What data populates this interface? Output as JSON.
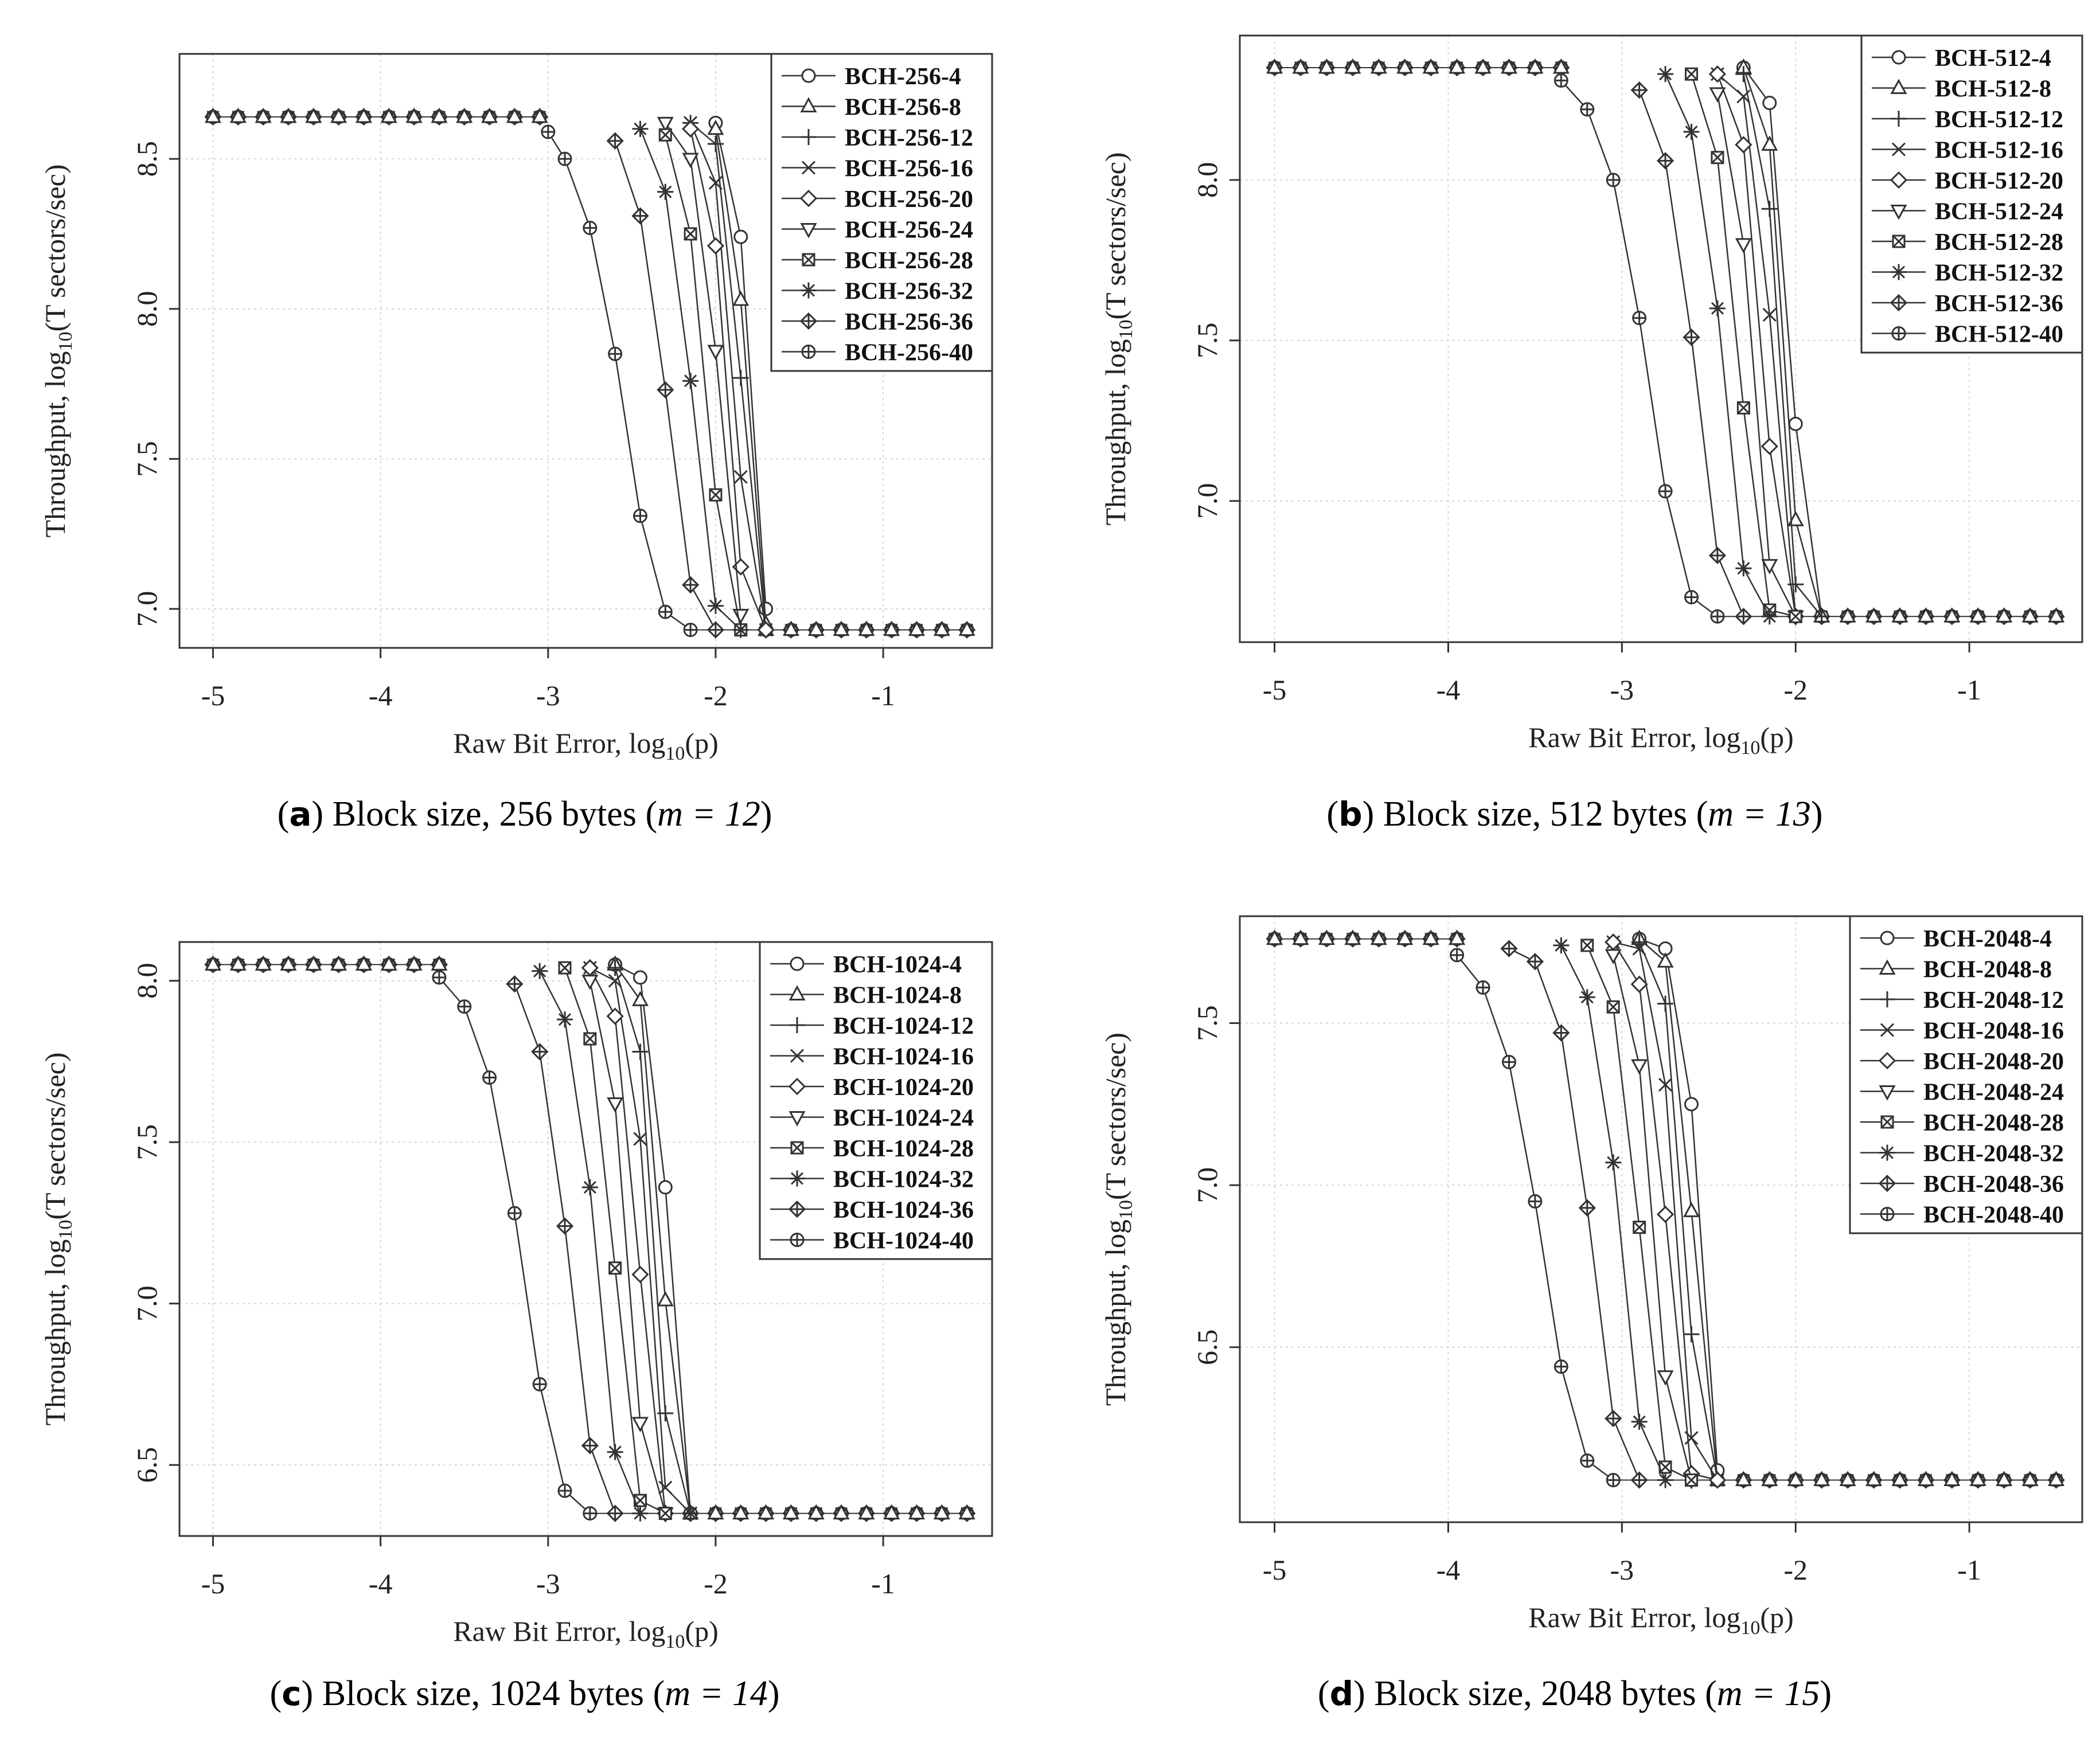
{
  "chart_data": [
    {
      "id": "a",
      "type": "line",
      "caption": {
        "letter": "a",
        "text": "Block size, 256 bytes",
        "param": "m = 12"
      },
      "xlabel": "Raw Bit Error, log10(p)",
      "ylabel": "Throughput, log10(T sectors/sec)",
      "xlim": [
        -5.2,
        -0.35
      ],
      "ylim": [
        6.87,
        8.85
      ],
      "xticks": [
        -5,
        -4,
        -3,
        -2,
        -1
      ],
      "xtick_labels": [
        "-5",
        "-4",
        "-3",
        "-2",
        "-1"
      ],
      "yticks": [
        7.0,
        7.5,
        8.0,
        8.5
      ],
      "ytick_labels": [
        "7.0",
        "7.5",
        "8.0",
        "8.5"
      ],
      "legend_position": "top-right",
      "series": [
        {
          "name": "BCH-256-4",
          "marker": "circle",
          "x": [
            -2.0,
            -1.85,
            -1.7
          ],
          "y": [
            8.62,
            8.24,
            7.0
          ]
        },
        {
          "name": "BCH-256-8",
          "marker": "triangle",
          "x": [
            -2.0,
            -1.85,
            -1.7
          ],
          "y": [
            8.6,
            8.03,
            6.95
          ]
        },
        {
          "name": "BCH-256-12",
          "marker": "plus",
          "x": [
            -2.15,
            -2.0,
            -1.85,
            -1.7
          ],
          "y": [
            8.62,
            8.55,
            7.77,
            6.93
          ]
        },
        {
          "name": "BCH-256-16",
          "marker": "cross",
          "x": [
            -2.15,
            -2.0,
            -1.85,
            -1.7
          ],
          "y": [
            8.62,
            8.42,
            7.44,
            6.93
          ]
        },
        {
          "name": "BCH-256-20",
          "marker": "diamond",
          "x": [
            -2.15,
            -2.0,
            -1.85,
            -1.7
          ],
          "y": [
            8.6,
            8.21,
            7.14,
            6.93
          ]
        },
        {
          "name": "BCH-256-24",
          "marker": "triangle-down",
          "x": [
            -2.3,
            -2.15,
            -2.0,
            -1.85
          ],
          "y": [
            8.62,
            8.5,
            7.86,
            6.98
          ]
        },
        {
          "name": "BCH-256-28",
          "marker": "square-x",
          "x": [
            -2.3,
            -2.15,
            -2.0,
            -1.85
          ],
          "y": [
            8.58,
            8.25,
            7.38,
            6.93
          ]
        },
        {
          "name": "BCH-256-32",
          "marker": "asterisk",
          "x": [
            -2.45,
            -2.3,
            -2.15,
            -2.0,
            -1.85
          ],
          "y": [
            8.6,
            8.39,
            7.76,
            7.01,
            6.93
          ]
        },
        {
          "name": "BCH-256-36",
          "marker": "diamond-plus",
          "x": [
            -2.6,
            -2.45,
            -2.3,
            -2.15,
            -2.0
          ],
          "y": [
            8.56,
            8.31,
            7.73,
            7.08,
            6.93
          ]
        },
        {
          "name": "BCH-256-40",
          "marker": "circle-plus",
          "x": [
            -3.0,
            -2.9,
            -2.75,
            -2.6,
            -2.45,
            -2.3,
            -2.15
          ],
          "y": [
            8.59,
            8.5,
            8.27,
            7.85,
            7.31,
            6.99,
            6.93
          ]
        }
      ],
      "plateau": {
        "x_start": -5.0,
        "x_end": -0.5,
        "x_step": 0.15,
        "y_high": 8.64,
        "y_low": 6.93
      }
    },
    {
      "id": "b",
      "type": "line",
      "caption": {
        "letter": "b",
        "text": "Block size, 512 bytes",
        "param": "m = 13"
      },
      "xlabel": "Raw Bit Error, log10(p)",
      "ylabel": "Throughput, log10(T sectors/sec)",
      "xlim": [
        -5.2,
        -0.35
      ],
      "ylim": [
        6.56,
        8.45
      ],
      "xticks": [
        -5,
        -4,
        -3,
        -2,
        -1
      ],
      "xtick_labels": [
        "-5",
        "-4",
        "-3",
        "-2",
        "-1"
      ],
      "yticks": [
        7.0,
        7.5,
        8.0
      ],
      "ytick_labels": [
        "7.0",
        "7.5",
        "8.0"
      ],
      "legend_position": "top-right",
      "series": [
        {
          "name": "BCH-512-4",
          "marker": "circle",
          "x": [
            -2.3,
            -2.15,
            -2.0,
            -1.85
          ],
          "y": [
            8.35,
            8.24,
            7.24,
            6.64
          ]
        },
        {
          "name": "BCH-512-8",
          "marker": "triangle",
          "x": [
            -2.3,
            -2.15,
            -2.0,
            -1.85
          ],
          "y": [
            8.35,
            8.11,
            6.94,
            6.64
          ]
        },
        {
          "name": "BCH-512-12",
          "marker": "plus",
          "x": [
            -2.3,
            -2.15,
            -2.0,
            -1.85
          ],
          "y": [
            8.33,
            7.91,
            6.74,
            6.64
          ]
        },
        {
          "name": "BCH-512-16",
          "marker": "cross",
          "x": [
            -2.45,
            -2.3,
            -2.15,
            -2.0
          ],
          "y": [
            8.33,
            8.26,
            7.58,
            6.64
          ]
        },
        {
          "name": "BCH-512-20",
          "marker": "diamond",
          "x": [
            -2.45,
            -2.3,
            -2.15,
            -2.0
          ],
          "y": [
            8.33,
            8.11,
            7.17,
            6.64
          ]
        },
        {
          "name": "BCH-512-24",
          "marker": "triangle-down",
          "x": [
            -2.45,
            -2.3,
            -2.15,
            -2.0
          ],
          "y": [
            8.27,
            7.8,
            6.8,
            6.64
          ]
        },
        {
          "name": "BCH-512-28",
          "marker": "square-x",
          "x": [
            -2.6,
            -2.45,
            -2.3,
            -2.15,
            -2.0
          ],
          "y": [
            8.33,
            8.07,
            7.29,
            6.66,
            6.64
          ]
        },
        {
          "name": "BCH-512-32",
          "marker": "asterisk",
          "x": [
            -2.75,
            -2.6,
            -2.45,
            -2.3,
            -2.15
          ],
          "y": [
            8.33,
            8.15,
            7.6,
            6.79,
            6.64
          ]
        },
        {
          "name": "BCH-512-36",
          "marker": "diamond-plus",
          "x": [
            -2.9,
            -2.75,
            -2.6,
            -2.45,
            -2.3
          ],
          "y": [
            8.28,
            8.06,
            7.51,
            6.83,
            6.64
          ]
        },
        {
          "name": "BCH-512-40",
          "marker": "circle-plus",
          "x": [
            -3.35,
            -3.2,
            -3.05,
            -2.9,
            -2.75,
            -2.6,
            -2.45
          ],
          "y": [
            8.31,
            8.22,
            8.0,
            7.57,
            7.03,
            6.7,
            6.64
          ]
        }
      ],
      "plateau": {
        "x_start": -5.0,
        "x_end": -0.5,
        "x_step": 0.15,
        "y_high": 8.35,
        "y_low": 6.64
      }
    },
    {
      "id": "c",
      "type": "line",
      "caption": {
        "letter": "c",
        "text": "Block size, 1024 bytes",
        "param": "m = 14"
      },
      "xlabel": "Raw Bit Error, log10(p)",
      "ylabel": "Throughput, log10(T sectors/sec)",
      "xlim": [
        -5.2,
        -0.35
      ],
      "ylim": [
        6.28,
        8.12
      ],
      "xticks": [
        -5,
        -4,
        -3,
        -2,
        -1
      ],
      "xtick_labels": [
        "-5",
        "-4",
        "-3",
        "-2",
        "-1"
      ],
      "yticks": [
        6.5,
        7.0,
        7.5,
        8.0
      ],
      "ytick_labels": [
        "6.5",
        "7.0",
        "7.5",
        "8.0"
      ],
      "legend_position": "top-right",
      "series": [
        {
          "name": "BCH-1024-4",
          "marker": "circle",
          "x": [
            -2.6,
            -2.45,
            -2.3,
            -2.15
          ],
          "y": [
            8.05,
            8.01,
            7.36,
            6.35
          ]
        },
        {
          "name": "BCH-1024-8",
          "marker": "triangle",
          "x": [
            -2.6,
            -2.45,
            -2.3,
            -2.15
          ],
          "y": [
            8.05,
            7.94,
            7.01,
            6.35
          ]
        },
        {
          "name": "BCH-1024-12",
          "marker": "plus",
          "x": [
            -2.6,
            -2.45,
            -2.3,
            -2.15
          ],
          "y": [
            8.04,
            7.78,
            6.66,
            6.35
          ]
        },
        {
          "name": "BCH-1024-16",
          "marker": "cross",
          "x": [
            -2.75,
            -2.6,
            -2.45,
            -2.3,
            -2.15
          ],
          "y": [
            8.04,
            8.0,
            7.51,
            6.43,
            6.35
          ]
        },
        {
          "name": "BCH-1024-20",
          "marker": "diamond",
          "x": [
            -2.75,
            -2.6,
            -2.45,
            -2.3
          ],
          "y": [
            8.04,
            7.89,
            7.09,
            6.35
          ]
        },
        {
          "name": "BCH-1024-24",
          "marker": "triangle-down",
          "x": [
            -2.75,
            -2.6,
            -2.45,
            -2.3
          ],
          "y": [
            8.0,
            7.62,
            6.63,
            6.35
          ]
        },
        {
          "name": "BCH-1024-28",
          "marker": "square-x",
          "x": [
            -2.9,
            -2.75,
            -2.6,
            -2.45,
            -2.3
          ],
          "y": [
            8.04,
            7.82,
            7.11,
            6.39,
            6.35
          ]
        },
        {
          "name": "BCH-1024-32",
          "marker": "asterisk",
          "x": [
            -3.05,
            -2.9,
            -2.75,
            -2.6,
            -2.45
          ],
          "y": [
            8.03,
            7.88,
            7.36,
            6.54,
            6.35
          ]
        },
        {
          "name": "BCH-1024-36",
          "marker": "diamond-plus",
          "x": [
            -3.2,
            -3.05,
            -2.9,
            -2.75,
            -2.6
          ],
          "y": [
            7.99,
            7.78,
            7.24,
            6.56,
            6.35
          ]
        },
        {
          "name": "BCH-1024-40",
          "marker": "circle-plus",
          "x": [
            -3.65,
            -3.5,
            -3.35,
            -3.2,
            -3.05,
            -2.9,
            -2.75
          ],
          "y": [
            8.01,
            7.92,
            7.7,
            7.28,
            6.75,
            6.42,
            6.35
          ]
        }
      ],
      "plateau": {
        "x_start": -5.0,
        "x_end": -0.5,
        "x_step": 0.15,
        "y_high": 8.05,
        "y_low": 6.35
      }
    },
    {
      "id": "d",
      "type": "line",
      "caption": {
        "letter": "d",
        "text": "Block size, 2048 bytes",
        "param": "m = 15"
      },
      "xlabel": "Raw Bit Error, log10(p)",
      "ylabel": "Throughput, log10(T sectors/sec)",
      "xlim": [
        -5.2,
        -0.35
      ],
      "ylim": [
        5.96,
        7.83
      ],
      "xticks": [
        -5,
        -4,
        -3,
        -2,
        -1
      ],
      "xtick_labels": [
        "-5",
        "-4",
        "-3",
        "-2",
        "-1"
      ],
      "yticks": [
        6.5,
        7.0,
        7.5
      ],
      "ytick_labels": [
        "6.5",
        "7.0",
        "7.5"
      ],
      "legend_position": "top-right",
      "series": [
        {
          "name": "BCH-2048-4",
          "marker": "circle",
          "x": [
            -2.9,
            -2.75,
            -2.6,
            -2.45
          ],
          "y": [
            7.76,
            7.73,
            7.25,
            6.12
          ]
        },
        {
          "name": "BCH-2048-8",
          "marker": "triangle",
          "x": [
            -2.9,
            -2.75,
            -2.6,
            -2.45
          ],
          "y": [
            7.76,
            7.69,
            6.92,
            6.09
          ]
        },
        {
          "name": "BCH-2048-12",
          "marker": "plus",
          "x": [
            -2.9,
            -2.75,
            -2.6,
            -2.45
          ],
          "y": [
            7.75,
            7.56,
            6.54,
            6.09
          ]
        },
        {
          "name": "BCH-2048-16",
          "marker": "cross",
          "x": [
            -3.05,
            -2.9,
            -2.75,
            -2.6,
            -2.45
          ],
          "y": [
            7.75,
            7.73,
            7.31,
            6.22,
            6.09
          ]
        },
        {
          "name": "BCH-2048-20",
          "marker": "diamond",
          "x": [
            -3.05,
            -2.9,
            -2.75,
            -2.6,
            -2.45
          ],
          "y": [
            7.75,
            7.62,
            6.91,
            6.11,
            6.09
          ]
        },
        {
          "name": "BCH-2048-24",
          "marker": "triangle-down",
          "x": [
            -3.05,
            -2.9,
            -2.75,
            -2.6
          ],
          "y": [
            7.71,
            7.37,
            6.41,
            6.09
          ]
        },
        {
          "name": "BCH-2048-28",
          "marker": "square-x",
          "x": [
            -3.2,
            -3.05,
            -2.9,
            -2.75,
            -2.6
          ],
          "y": [
            7.74,
            7.55,
            6.87,
            6.13,
            6.09
          ]
        },
        {
          "name": "BCH-2048-32",
          "marker": "asterisk",
          "x": [
            -3.35,
            -3.2,
            -3.05,
            -2.9,
            -2.75
          ],
          "y": [
            7.74,
            7.58,
            7.07,
            6.27,
            6.09
          ]
        },
        {
          "name": "BCH-2048-36",
          "marker": "diamond-plus",
          "x": [
            -3.65,
            -3.5,
            -3.35,
            -3.2,
            -3.05,
            -2.9
          ],
          "y": [
            7.73,
            7.69,
            7.47,
            6.93,
            6.28,
            6.09
          ]
        },
        {
          "name": "BCH-2048-40",
          "marker": "circle-plus",
          "x": [
            -3.95,
            -3.8,
            -3.65,
            -3.5,
            -3.35,
            -3.2,
            -3.05
          ],
          "y": [
            7.71,
            7.61,
            7.38,
            6.95,
            6.44,
            6.15,
            6.09
          ]
        }
      ],
      "plateau": {
        "x_start": -5.0,
        "x_end": -0.5,
        "x_step": 0.15,
        "y_high": 7.76,
        "y_low": 6.09
      }
    }
  ]
}
